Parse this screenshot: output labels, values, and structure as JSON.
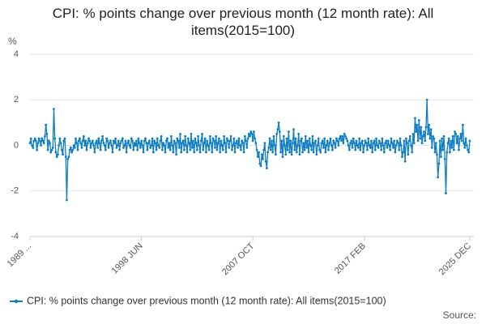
{
  "chart_data": {
    "type": "line",
    "title": "CPI: % points change over previous month (12 month rate): All items(2015=100)",
    "y_label": "%",
    "source": "Source:",
    "ylim": [
      -4,
      4
    ],
    "yticks": [
      -4,
      -2,
      0,
      2,
      4
    ],
    "grid": true,
    "categories": [
      "1989 ...",
      null,
      null,
      null,
      null,
      null,
      null,
      null,
      null,
      null,
      null,
      null,
      null,
      null,
      null,
      null,
      null,
      null,
      null,
      null,
      null,
      null,
      null,
      null,
      null,
      null,
      null,
      null,
      null,
      null,
      null,
      null,
      null,
      null,
      null,
      null,
      null,
      null,
      null,
      null,
      null,
      null,
      null,
      null,
      null,
      null,
      null,
      null,
      null,
      null,
      null,
      null,
      null,
      null,
      null,
      null,
      null,
      null,
      null,
      null,
      null,
      null,
      null,
      null,
      null,
      null,
      null,
      null,
      null,
      null,
      null,
      null,
      null,
      null,
      null,
      null,
      null,
      null,
      null,
      null,
      null,
      null,
      null,
      null,
      null,
      null,
      null,
      null,
      null,
      null,
      null,
      null,
      null,
      null,
      null,
      null,
      null,
      null,
      null,
      null,
      null,
      null,
      null,
      null,
      null,
      null,
      null,
      null,
      null,
      null,
      null,
      null,
      "1998 JUN",
      null,
      null,
      null,
      null,
      null,
      null,
      null,
      null,
      null,
      null,
      null,
      null,
      null,
      null,
      null,
      null,
      null,
      null,
      null,
      null,
      null,
      null,
      null,
      null,
      null,
      null,
      null,
      null,
      null,
      null,
      null,
      null,
      null,
      null,
      null,
      null,
      null,
      null,
      null,
      null,
      null,
      null,
      null,
      null,
      null,
      null,
      null,
      null,
      null,
      null,
      null,
      null,
      null,
      null,
      null,
      null,
      null,
      null,
      null,
      null,
      null,
      null,
      null,
      null,
      null,
      null,
      null,
      null,
      null,
      null,
      null,
      null,
      null,
      null,
      null,
      null,
      null,
      null,
      null,
      null,
      null,
      null,
      null,
      null,
      null,
      null,
      null,
      null,
      null,
      null,
      null,
      null,
      null,
      null,
      null,
      null,
      null,
      null,
      null,
      null,
      null,
      null,
      null,
      null,
      null,
      null,
      null,
      null,
      null,
      null,
      null,
      "2007 OCT",
      null,
      null,
      null,
      null,
      null,
      null,
      null,
      null,
      null,
      null,
      null,
      null,
      null,
      null,
      null,
      null,
      null,
      null,
      null,
      null,
      null,
      null,
      null,
      null,
      null,
      null,
      null,
      null,
      null,
      null,
      null,
      null,
      null,
      null,
      null,
      null,
      null,
      null,
      null,
      null,
      null,
      null,
      null,
      null,
      null,
      null,
      null,
      null,
      null,
      null,
      null,
      null,
      null,
      null,
      null,
      null,
      null,
      null,
      null,
      null,
      null,
      null,
      null,
      null,
      null,
      null,
      null,
      null,
      null,
      null,
      null,
      null,
      null,
      null,
      null,
      null,
      null,
      null,
      null,
      null,
      null,
      null,
      null,
      null,
      null,
      null,
      null,
      null,
      null,
      null,
      null,
      null,
      null,
      null,
      null,
      null,
      null,
      null,
      null,
      null,
      null,
      null,
      null,
      null,
      null,
      null,
      null,
      null,
      null,
      null,
      null,
      "2017 FEB",
      null,
      null,
      null,
      null,
      null,
      null,
      null,
      null,
      null,
      null,
      null,
      null,
      null,
      null,
      null,
      null,
      null,
      null,
      null,
      null,
      null,
      null,
      null,
      null,
      null,
      null,
      null,
      null,
      null,
      null,
      null,
      null,
      null,
      null,
      null,
      null,
      null,
      null,
      null,
      null,
      null,
      null,
      null,
      null,
      null,
      null,
      null,
      null,
      null,
      null,
      null,
      null,
      null,
      null,
      null,
      null,
      null,
      null,
      null,
      null,
      null,
      null,
      null,
      null,
      null,
      null,
      null,
      null,
      null,
      null,
      null,
      null,
      null,
      null,
      null,
      null,
      null,
      null,
      null,
      null,
      null,
      null,
      null,
      null,
      null,
      null,
      null,
      null,
      null,
      null,
      null,
      null,
      null,
      null,
      null,
      null,
      null,
      null,
      null,
      null,
      null,
      null,
      null,
      null,
      null,
      "2025 DEC"
    ],
    "series": [
      {
        "name": "CPI: % points change over previous month (12 month rate): All items(2015=100)",
        "color": "#0f7dc2",
        "values": [
          0.1,
          0.3,
          0.0,
          -0.1,
          0.2,
          0.3,
          0.2,
          -0.2,
          0.1,
          0.3,
          0.2,
          0.0,
          0.3,
          0.2,
          0.1,
          0.4,
          0.9,
          0.5,
          -0.2,
          0.2,
          0.1,
          -0.3,
          -0.2,
          -0.1,
          1.6,
          0.3,
          -0.3,
          -0.5,
          -0.4,
          0.0,
          0.3,
          0.1,
          -0.2,
          -0.4,
          0.2,
          0.3,
          -0.5,
          -2.4,
          -0.6,
          -0.5,
          -0.2,
          -0.1,
          -0.3,
          -0.2,
          0.0,
          -0.1,
          0.3,
          0.1,
          -0.2,
          0.2,
          0.3,
          0.1,
          -0.1,
          0.2,
          0.4,
          0.0,
          0.2,
          -0.2,
          0.1,
          0.3,
          0.2,
          -0.1,
          0.1,
          0.2,
          0.0,
          -0.3,
          0.1,
          0.2,
          -0.1,
          0.3,
          0.1,
          -0.2,
          0.2,
          0.4,
          0.1,
          0.0,
          -0.2,
          0.3,
          0.2,
          -0.1,
          0.1,
          0.2,
          0.0,
          -0.3,
          0.2,
          0.1,
          0.3,
          -0.1,
          0.0,
          0.2,
          -0.2,
          0.1,
          0.2,
          0.3,
          -0.1,
          0.0,
          0.2,
          -0.3,
          0.1,
          0.2,
          0.0,
          -0.1,
          0.3,
          0.2,
          -0.2,
          0.1,
          0.0,
          0.2,
          -0.2,
          0.3,
          0.1,
          -0.1,
          0.2,
          0.0,
          -0.3,
          0.2,
          0.3,
          0.1,
          -0.2,
          0.1,
          0.2,
          -0.1,
          0.0,
          0.3,
          -0.3,
          0.2,
          0.1,
          -0.2,
          0.3,
          0.0,
          -0.1,
          0.2,
          0.4,
          -0.2,
          0.1,
          0.0,
          -0.3,
          0.2,
          0.3,
          -0.1,
          0.1,
          -0.2,
          0.4,
          0.0,
          -0.3,
          0.2,
          0.1,
          -0.4,
          0.3,
          0.2,
          -0.1,
          0.5,
          -0.3,
          0.1,
          0.2,
          -0.2,
          0.4,
          0.0,
          -0.3,
          0.3,
          0.1,
          -0.2,
          0.5,
          -0.1,
          0.2,
          -0.3,
          0.3,
          0.1,
          -0.2,
          0.4,
          0.0,
          -0.3,
          0.2,
          0.5,
          -0.2,
          0.1,
          0.3,
          -0.3,
          0.2,
          0.0,
          -0.2,
          0.4,
          0.1,
          -0.3,
          0.3,
          0.2,
          -0.1,
          0.4,
          -0.2,
          0.1,
          0.3,
          -0.3,
          0.2,
          0.0,
          -0.2,
          0.4,
          0.1,
          -0.3,
          0.3,
          0.2,
          -0.1,
          0.2,
          0.4,
          -0.2,
          0.0,
          0.3,
          -0.3,
          0.1,
          0.2,
          -0.1,
          0.3,
          0.0,
          -0.2,
          0.2,
          0.1,
          -0.3,
          0.4,
          0.2,
          -0.1,
          0.3,
          0.5,
          0.4,
          0.6,
          0.5,
          0.2,
          0.6,
          0.3,
          0.1,
          -0.2,
          -0.5,
          -0.3,
          -0.8,
          -0.9,
          -0.4,
          -0.6,
          -0.2,
          0.1,
          -0.7,
          -1.0,
          -0.3,
          -0.1,
          0.3,
          -0.2,
          0.2,
          -0.3,
          0.4,
          0.0,
          -0.4,
          0.5,
          0.7,
          1.0,
          0.6,
          -0.3,
          0.2,
          -0.5,
          0.4,
          0.0,
          -0.4,
          0.3,
          -0.2,
          0.6,
          -0.3,
          0.2,
          -0.4,
          0.1,
          0.7,
          -0.2,
          0.3,
          -0.3,
          0.0,
          0.5,
          -0.4,
          0.2,
          0.3,
          -0.3,
          0.1,
          -0.2,
          0.4,
          -0.1,
          0.2,
          -0.3,
          0.3,
          0.0,
          -0.2,
          0.4,
          -0.3,
          0.1,
          0.2,
          -0.4,
          0.0,
          0.3,
          -0.2,
          -0.3,
          0.1,
          0.2,
          -0.1,
          0.3,
          -0.3,
          0.0,
          0.2,
          -0.2,
          0.1,
          0.3,
          0.0,
          -0.2,
          0.2,
          0.1,
          -0.1,
          0.3,
          0.2,
          0.0,
          0.3,
          0.4,
          0.2,
          0.4,
          0.1,
          0.5,
          0.4,
          0.3,
          0.2,
          0.0,
          -0.2,
          0.1,
          0.2,
          -0.1,
          0.3,
          0.1,
          -0.2,
          0.2,
          0.0,
          -0.1,
          0.3,
          -0.2,
          0.1,
          0.2,
          -0.3,
          0.0,
          0.2,
          0.1,
          -0.2,
          0.3,
          0.0,
          -0.1,
          0.2,
          -0.3,
          0.1,
          0.2,
          -0.2,
          0.3,
          0.0,
          -0.1,
          0.2,
          0.1,
          -0.2,
          0.3,
          0.0,
          -0.3,
          0.1,
          0.2,
          -0.1,
          0.2,
          0.0,
          -0.2,
          0.3,
          0.1,
          -0.1,
          0.2,
          -0.3,
          0.0,
          0.2,
          0.1,
          -0.2,
          0.3,
          0.0,
          -0.5,
          -0.3,
          0.2,
          -0.7,
          0.3,
          0.1,
          -0.4,
          0.2,
          0.4,
          0.0,
          -0.3,
          0.5,
          0.1,
          1.2,
          0.6,
          0.9,
          0.2,
          1.1,
          0.3,
          0.8,
          0.1,
          0.4,
          0.6,
          0.2,
          0.8,
          2.0,
          0.5,
          0.9,
          0.3,
          0.7,
          -0.1,
          0.4,
          0.3,
          -0.3,
          0.1,
          -0.4,
          -1.4,
          -0.8,
          0.2,
          -0.5,
          0.3,
          -0.2,
          0.4,
          -0.6,
          -2.1,
          -0.3,
          0.1,
          0.3,
          -0.3,
          0.2,
          -0.1,
          0.4,
          -0.2,
          0.6,
          0.5,
          0.1,
          0.4,
          -0.2,
          0.3,
          0.5,
          0.2,
          0.9,
          0.1,
          -0.1,
          0.3,
          0.0,
          -0.2,
          -0.3,
          0.2
        ]
      }
    ]
  }
}
